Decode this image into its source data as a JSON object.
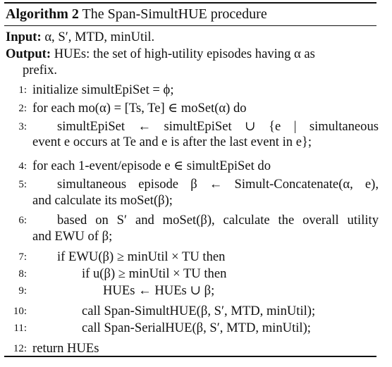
{
  "algorithm": {
    "label": "Algorithm 2",
    "title": "The Span-SimultHUE procedure"
  },
  "input": {
    "keyword": "Input:",
    "text": "α, S′, MTD, minUtil."
  },
  "output": {
    "keyword": "Output:",
    "line1": "HUEs: the set of high-utility episodes having α as",
    "line2": "prefix."
  },
  "steps": [
    {
      "num": "1:",
      "text": "initialize simultEpiSet = ϕ;"
    },
    {
      "num": "2:",
      "text": "for each mo(α) = [Ts, Te] ∈ moSet(α) do"
    },
    {
      "num": "3:",
      "text": "simultEpiSet ← simultEpiSet ∪ {e | simultaneous",
      "cont": "event e occurs at Te and e is after the last event in e};"
    },
    {
      "num": "4:",
      "text": "for each 1-event/episode e ∈ simultEpiSet do"
    },
    {
      "num": "5:",
      "text": "simultaneous episode β ← Simult-Concatenate(α, e),",
      "cont": "and calculate its moSet(β);"
    },
    {
      "num": "6:",
      "text": "based on S′ and moSet(β), calculate the overall utility",
      "cont": "and EWU of β;"
    },
    {
      "num": "7:",
      "text": "if EWU(β) ≥ minUtil × TU then"
    },
    {
      "num": "8:",
      "text": "if u(β) ≥ minUtil × TU then"
    },
    {
      "num": "9:",
      "text": "HUEs ← HUEs ∪ β;"
    },
    {
      "num": "10:",
      "text": "call Span-SimultHUE(β, S′, MTD, minUtil);"
    },
    {
      "num": "11:",
      "text": "call Span-SerialHUE(β, S′, MTD, minUtil);"
    },
    {
      "num": "12:",
      "text": "return HUEs"
    }
  ]
}
